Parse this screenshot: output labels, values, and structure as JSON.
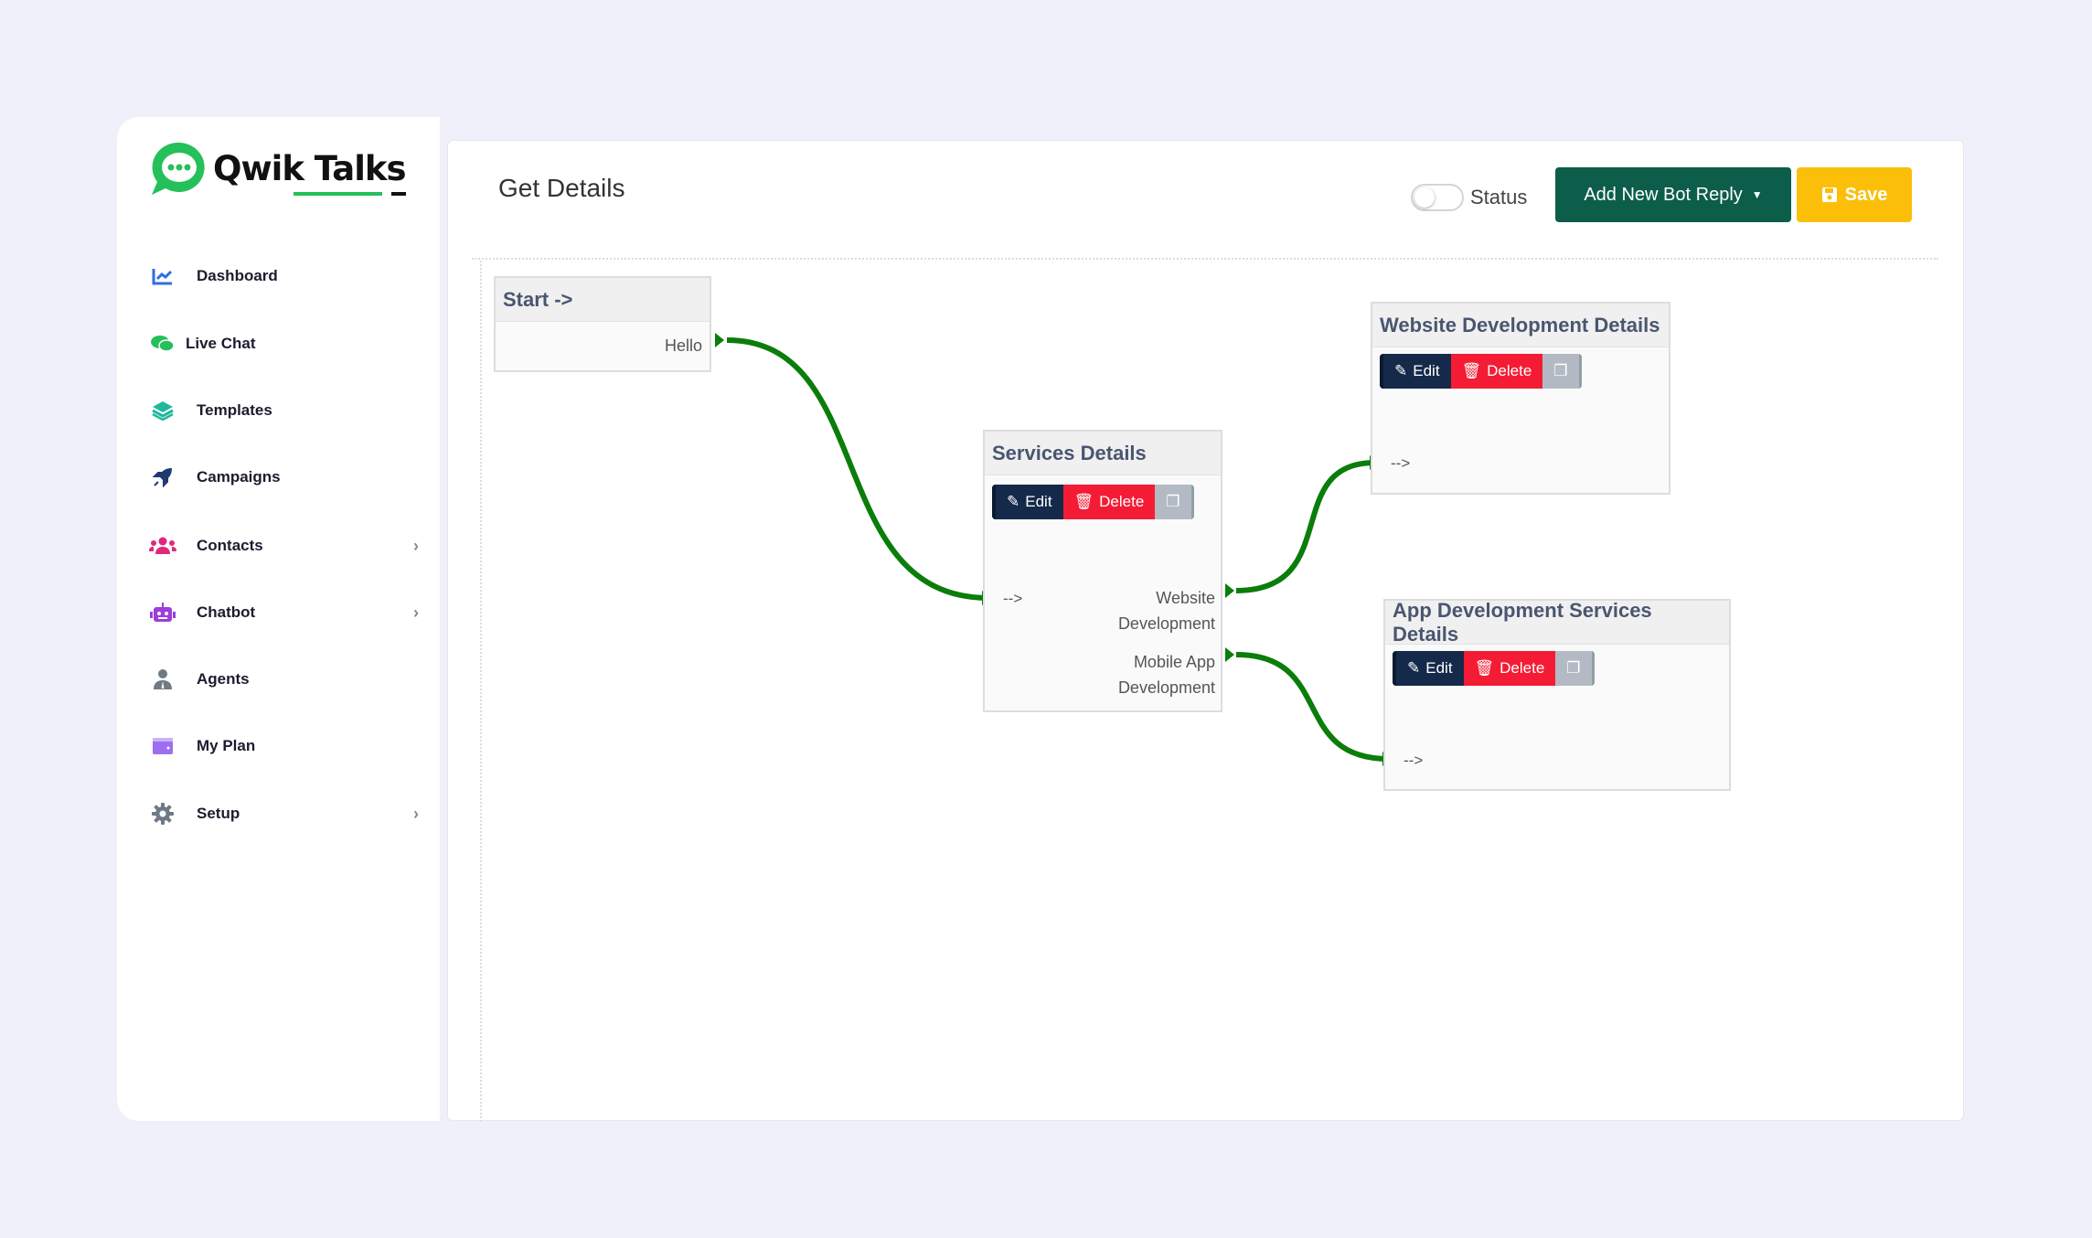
{
  "app": {
    "name": "Qwik Talks"
  },
  "sidebar": {
    "items": [
      {
        "label": "Dashboard",
        "icon": "chart-line-icon",
        "color": "#2f6fe0"
      },
      {
        "label": "Live Chat",
        "icon": "comments-icon",
        "color": "#25c05a"
      },
      {
        "label": "Templates",
        "icon": "layers-icon",
        "color": "#1fb89a"
      },
      {
        "label": "Campaigns",
        "icon": "rocket-icon",
        "color": "#1e3a6e"
      },
      {
        "label": "Contacts",
        "icon": "users-icon",
        "color": "#e0287a",
        "chevron": true
      },
      {
        "label": "Chatbot",
        "icon": "robot-icon",
        "color": "#9b3fd8",
        "chevron": true
      },
      {
        "label": "Agents",
        "icon": "user-tie-icon",
        "color": "#707a85"
      },
      {
        "label": "My Plan",
        "icon": "wallet-icon",
        "color": "#9f6ef0"
      },
      {
        "label": "Setup",
        "icon": "gear-icon",
        "color": "#707a85",
        "chevron": true
      }
    ]
  },
  "header": {
    "title": "Get Details",
    "status_label": "Status",
    "status_on": false,
    "add_button": "Add New Bot Reply",
    "save_button": "Save"
  },
  "flow": {
    "edit": "Edit",
    "delete": "Delete",
    "arrow": "-->",
    "connector_color": "#0a7d0a",
    "nodes": {
      "start": {
        "title": "Start ->",
        "option": "Hello"
      },
      "services": {
        "title": "Services Details",
        "options": [
          "Website Development",
          "Mobile App Development"
        ]
      },
      "website": {
        "title": "Website Development Details"
      },
      "app": {
        "title": "App Development Services Details"
      }
    }
  }
}
